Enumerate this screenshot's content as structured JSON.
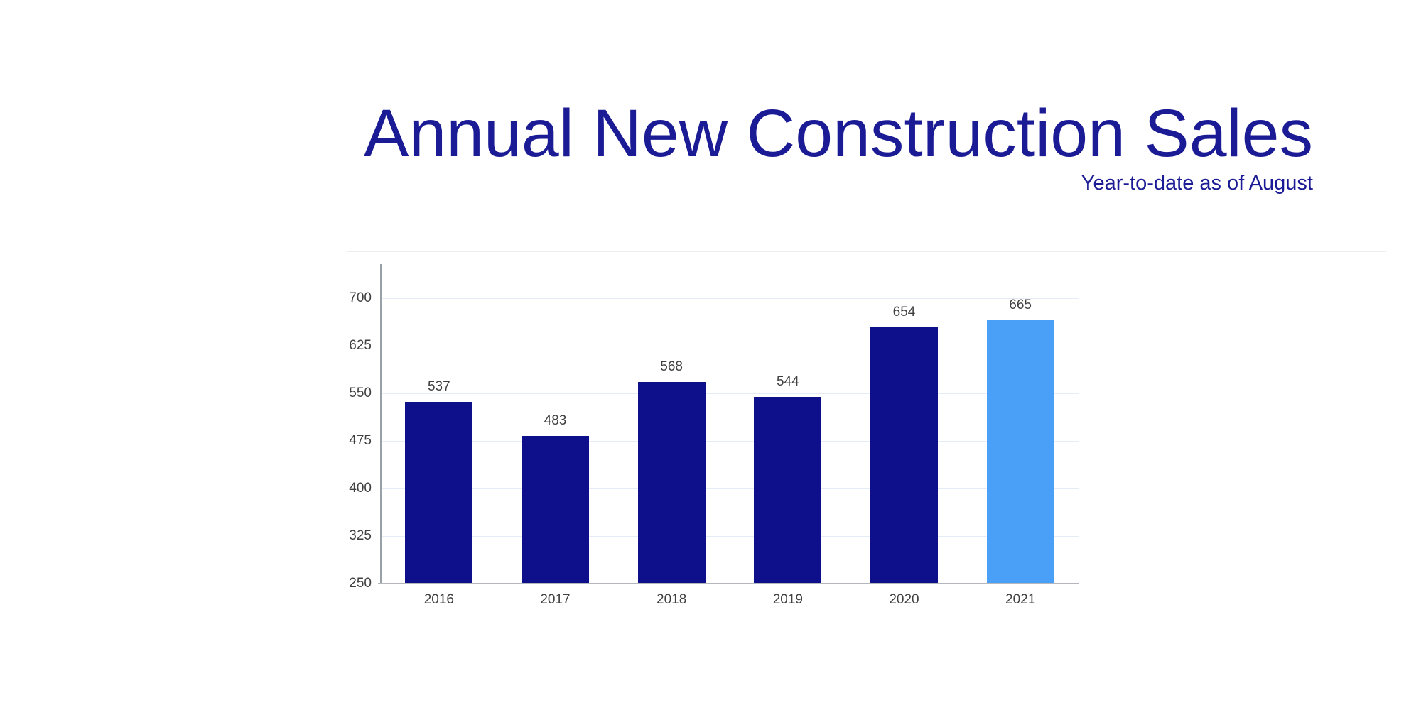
{
  "header": {
    "title": "Annual New Construction Sales",
    "subtitle": "Year-to-date as of August",
    "title_color": "#1b1b96"
  },
  "chart_data": {
    "type": "bar",
    "title": "Annual New Construction Sales",
    "subtitle": "Year-to-date as of August",
    "categories": [
      "2016",
      "2017",
      "2018",
      "2019",
      "2020",
      "2021"
    ],
    "values": [
      537,
      483,
      568,
      544,
      654,
      665
    ],
    "bar_colors": [
      "#0d108a",
      "#0d108a",
      "#0d108a",
      "#0d108a",
      "#0d108a",
      "#4aa0f7"
    ],
    "highlight_category": "2021",
    "highlight_color": "#4aa0f7",
    "default_bar_color": "#0d108a",
    "y_ticks": [
      700,
      625,
      550,
      475,
      400,
      325,
      250
    ],
    "ylim": [
      250,
      753
    ],
    "baseline_value": 250,
    "grid": true,
    "legend": "none",
    "xlabel": "",
    "ylabel": "",
    "gridline_color": "#e4edf7",
    "y_axis_line_color": "#9aa1a6",
    "x_axis_line_color": "#b4b8bc",
    "tick_label_color": "#404040",
    "value_label_color": "#404040"
  }
}
